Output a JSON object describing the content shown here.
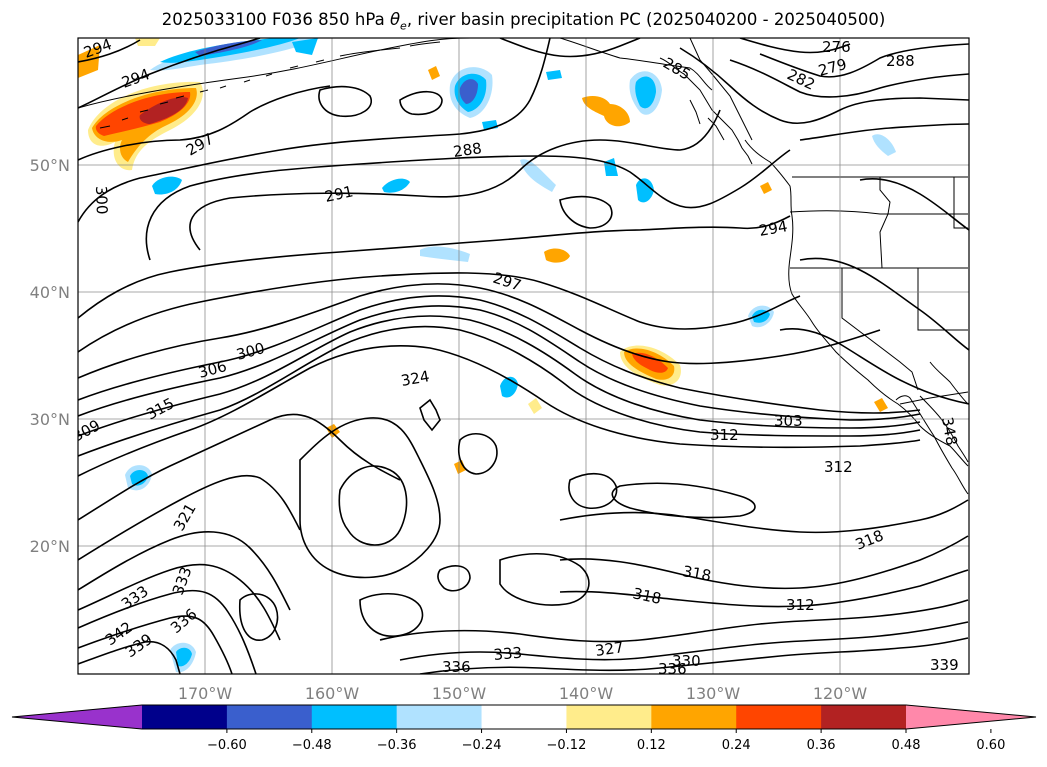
{
  "title": "2025033100 F036 850 hPa θe, river basin precipitation PC (2025040200 - 2025040500)",
  "title_parts": {
    "prefix": "2025033100 F036 850 hPa ",
    "theta": "θ",
    "sub": "e",
    "suffix": ", river basin precipitation PC (2025040200 - 2025040500)"
  },
  "map": {
    "lat_labels": [
      "50°N",
      "40°N",
      "30°N",
      "20°N"
    ],
    "lon_labels": [
      "170°W",
      "160°W",
      "150°W",
      "140°W",
      "130°W",
      "120°W"
    ],
    "gridlines": true,
    "extent": {
      "lon_min": -180,
      "lon_max": -110,
      "lat_min": 10,
      "lat_max": 60
    },
    "contour_labels": [
      "294",
      "294",
      "285",
      "276",
      "282",
      "279",
      "288",
      "297",
      "288",
      "291",
      "300",
      "294",
      "297",
      "300",
      "306",
      "324",
      "315",
      "309",
      "303",
      "312",
      "312",
      "321",
      "318",
      "318",
      "318",
      "312",
      "333",
      "333",
      "336",
      "342",
      "339",
      "327",
      "333",
      "336",
      "330",
      "336",
      "339",
      "348"
    ]
  },
  "colorbar": {
    "ticks": [
      "−0.60",
      "−0.48",
      "−0.36",
      "−0.24",
      "−0.12",
      "0.12",
      "0.24",
      "0.36",
      "0.48",
      "0.60"
    ],
    "colors": [
      "#9932cc",
      "#00008b",
      "#3a5fcd",
      "#00bfff",
      "#b0e2ff",
      "#ffffff",
      "#ffec8b",
      "#ffa500",
      "#ff4500",
      "#b22222",
      "#ff88aa"
    ]
  }
}
